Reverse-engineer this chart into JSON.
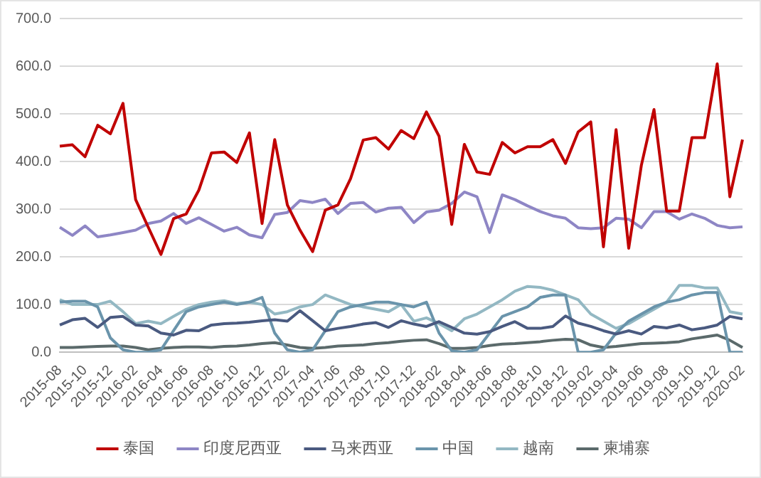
{
  "chart_data": {
    "type": "line",
    "categories": [
      "2015-08",
      null,
      "2015-10",
      null,
      "2015-12",
      null,
      "2016-02",
      null,
      "2016-04",
      null,
      "2016-06",
      null,
      "2016-08",
      null,
      "2016-10",
      null,
      "2016-12",
      null,
      "2017-02",
      null,
      "2017-04",
      null,
      "2017-06",
      null,
      "2017-08",
      null,
      "2017-10",
      null,
      "2017-12",
      null,
      "2018-02",
      null,
      "2018-04",
      null,
      "2018-06",
      null,
      "2018-08",
      null,
      "2018-10",
      null,
      "2018-12",
      null,
      "2019-02",
      null,
      "2019-04",
      null,
      "2019-06",
      null,
      "2019-08",
      null,
      "2019-10",
      null,
      "2019-12",
      null,
      "2020-02"
    ],
    "series": [
      {
        "name": "泰国",
        "color": "#c00000",
        "values": [
          432,
          435,
          410,
          476,
          458,
          522,
          320,
          262,
          205,
          280,
          290,
          340,
          418,
          420,
          398,
          460,
          270,
          446,
          309,
          256,
          211,
          298,
          309,
          364,
          445,
          450,
          426,
          465,
          448,
          504,
          453,
          268,
          436,
          378,
          373,
          440,
          418,
          431,
          431,
          446,
          396,
          462,
          483,
          221,
          467,
          218,
          392,
          509,
          296,
          296,
          450,
          450,
          605,
          326,
          446
        ]
      },
      {
        "name": "印度尼西亚",
        "color": "#8e86c5",
        "values": [
          262,
          245,
          265,
          242,
          246,
          251,
          256,
          270,
          275,
          291,
          270,
          282,
          268,
          254,
          262,
          246,
          240,
          289,
          293,
          318,
          314,
          321,
          291,
          312,
          314,
          294,
          302,
          304,
          272,
          294,
          298,
          312,
          336,
          326,
          251,
          330,
          320,
          307,
          295,
          286,
          281,
          261,
          259,
          261,
          281,
          279,
          261,
          295,
          295,
          279,
          290,
          281,
          266,
          261,
          263
        ]
      },
      {
        "name": "马来西亚",
        "color": "#4a5a80",
        "values": [
          57,
          68,
          71,
          52,
          73,
          75,
          57,
          55,
          40,
          36,
          46,
          45,
          57,
          60,
          61,
          63,
          66,
          68,
          65,
          87,
          66,
          45,
          50,
          54,
          59,
          62,
          52,
          66,
          59,
          54,
          64,
          52,
          40,
          38,
          43,
          54,
          64,
          50,
          50,
          54,
          76,
          61,
          54,
          45,
          38,
          45,
          38,
          54,
          51,
          57,
          47,
          51,
          57,
          75,
          70
        ]
      },
      {
        "name": "中国",
        "color": "#6a94ab",
        "values": [
          105,
          107,
          107,
          95,
          30,
          5,
          0,
          0,
          5,
          45,
          85,
          95,
          100,
          105,
          100,
          105,
          115,
          40,
          5,
          0,
          5,
          45,
          85,
          95,
          100,
          105,
          105,
          100,
          95,
          105,
          40,
          3,
          0,
          5,
          40,
          75,
          85,
          95,
          115,
          120,
          120,
          0,
          0,
          5,
          40,
          65,
          80,
          95,
          105,
          110,
          120,
          125,
          125,
          0,
          0
        ]
      },
      {
        "name": "越南",
        "color": "#93b8c3",
        "values": [
          110,
          100,
          100,
          100,
          107,
          85,
          60,
          65,
          60,
          75,
          90,
          100,
          105,
          108,
          102,
          105,
          100,
          80,
          85,
          95,
          100,
          120,
          110,
          100,
          95,
          90,
          85,
          100,
          65,
          72,
          60,
          45,
          70,
          80,
          95,
          110,
          128,
          138,
          136,
          130,
          120,
          110,
          80,
          65,
          50,
          60,
          75,
          90,
          105,
          140,
          140,
          135,
          135,
          85,
          80
        ]
      },
      {
        "name": "柬埔寨",
        "color": "#5b6a6b",
        "values": [
          10,
          10,
          11,
          12,
          13,
          13,
          10,
          5,
          8,
          10,
          11,
          11,
          10,
          12,
          13,
          15,
          18,
          20,
          15,
          10,
          8,
          10,
          13,
          14,
          15,
          18,
          20,
          23,
          25,
          26,
          18,
          8,
          8,
          10,
          14,
          17,
          18,
          20,
          22,
          25,
          27,
          26,
          15,
          10,
          12,
          15,
          18,
          19,
          20,
          22,
          28,
          32,
          36,
          25,
          10
        ]
      }
    ],
    "ylim": [
      0,
      700
    ],
    "yticks": [
      {
        "value": 0,
        "label": "0.0"
      },
      {
        "value": 100,
        "label": "100.0"
      },
      {
        "value": 200,
        "label": "200.0"
      },
      {
        "value": 300,
        "label": "300.0"
      },
      {
        "value": 400,
        "label": "400.0"
      },
      {
        "value": 500,
        "label": "500.0"
      },
      {
        "value": 600,
        "label": "600.0"
      },
      {
        "value": 700,
        "label": "700.0"
      }
    ],
    "grid": "y",
    "legend": "bottom",
    "marker": "none",
    "line_style": "solid"
  }
}
